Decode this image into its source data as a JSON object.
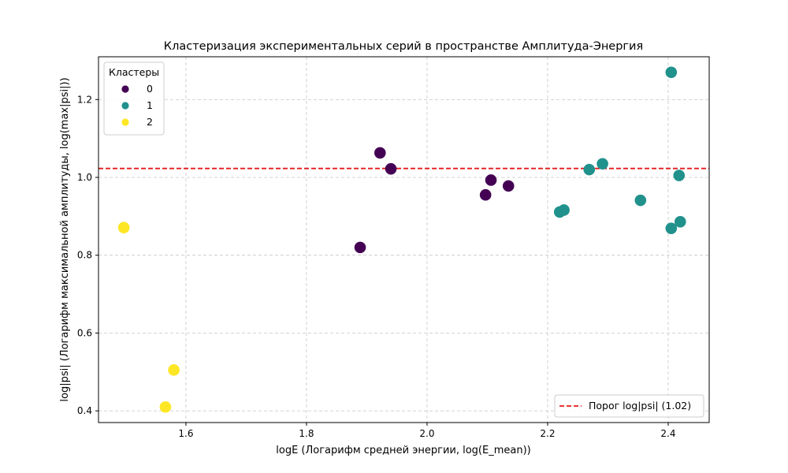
{
  "chart_data": {
    "type": "scatter",
    "title": "Кластеризация экспериментальных серий в пространстве Амплитуда-Энергия",
    "xlabel": "logE (Логарифм средней энергии, log(E_mean))",
    "ylabel": "log|psi| (Логарифм максимальной амплитуды, log(max|psi|))",
    "xlim": [
      1.455,
      2.468
    ],
    "ylim": [
      0.37,
      1.31
    ],
    "xticks": [
      "1.6",
      "1.8",
      "2.0",
      "2.2",
      "2.4"
    ],
    "xtick_values": [
      1.6,
      1.8,
      2.0,
      2.2,
      2.4
    ],
    "yticks": [
      "0.4",
      "0.6",
      "0.8",
      "1.0",
      "1.2"
    ],
    "ytick_values": [
      0.4,
      0.6,
      0.8,
      1.0,
      1.2
    ],
    "grid": true,
    "legend_title": "Кластеры",
    "legend_position": "top-left",
    "series": [
      {
        "name": "0",
        "color": "#440154",
        "points": [
          [
            1.922,
            1.063
          ],
          [
            1.94,
            1.022
          ],
          [
            1.889,
            0.82
          ],
          [
            2.097,
            0.955
          ],
          [
            2.106,
            0.993
          ],
          [
            2.135,
            0.978
          ]
        ]
      },
      {
        "name": "1",
        "color": "#21918c",
        "points": [
          [
            2.405,
            1.27
          ],
          [
            2.291,
            1.035
          ],
          [
            2.269,
            1.02
          ],
          [
            2.418,
            1.005
          ],
          [
            2.354,
            0.941
          ],
          [
            2.227,
            0.916
          ],
          [
            2.22,
            0.911
          ],
          [
            2.42,
            0.886
          ],
          [
            2.405,
            0.869
          ]
        ]
      },
      {
        "name": "2",
        "color": "#fde725",
        "points": [
          [
            1.497,
            0.871
          ],
          [
            1.58,
            0.505
          ],
          [
            1.566,
            0.41
          ]
        ]
      }
    ],
    "threshold": {
      "value": 1.023,
      "color": "#e41a1c",
      "label": "Порог log|psi| (1.02)",
      "legend_position": "bottom-right"
    }
  }
}
